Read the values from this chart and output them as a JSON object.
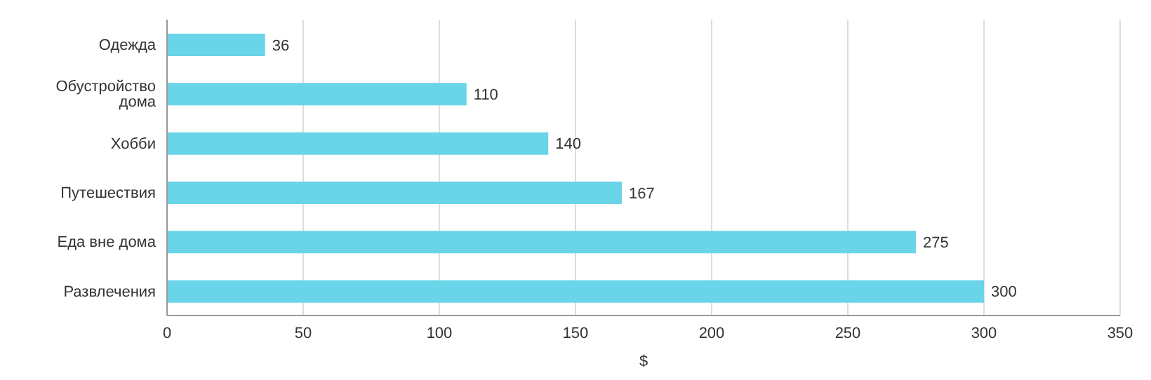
{
  "chart_data": {
    "type": "bar",
    "orientation": "horizontal",
    "xlabel": "$",
    "categories": [
      "Одежда",
      "Обустройство дома",
      "Хобби",
      "Путешествия",
      "Еда вне дома",
      "Развлечения"
    ],
    "values": [
      36,
      110,
      140,
      167,
      275,
      300
    ],
    "color": "#6ad4e8",
    "xlim": [
      0,
      350
    ],
    "xticks": [
      0,
      50,
      100,
      150,
      200,
      250,
      300,
      350
    ],
    "grid": "x",
    "data_labels": true
  }
}
